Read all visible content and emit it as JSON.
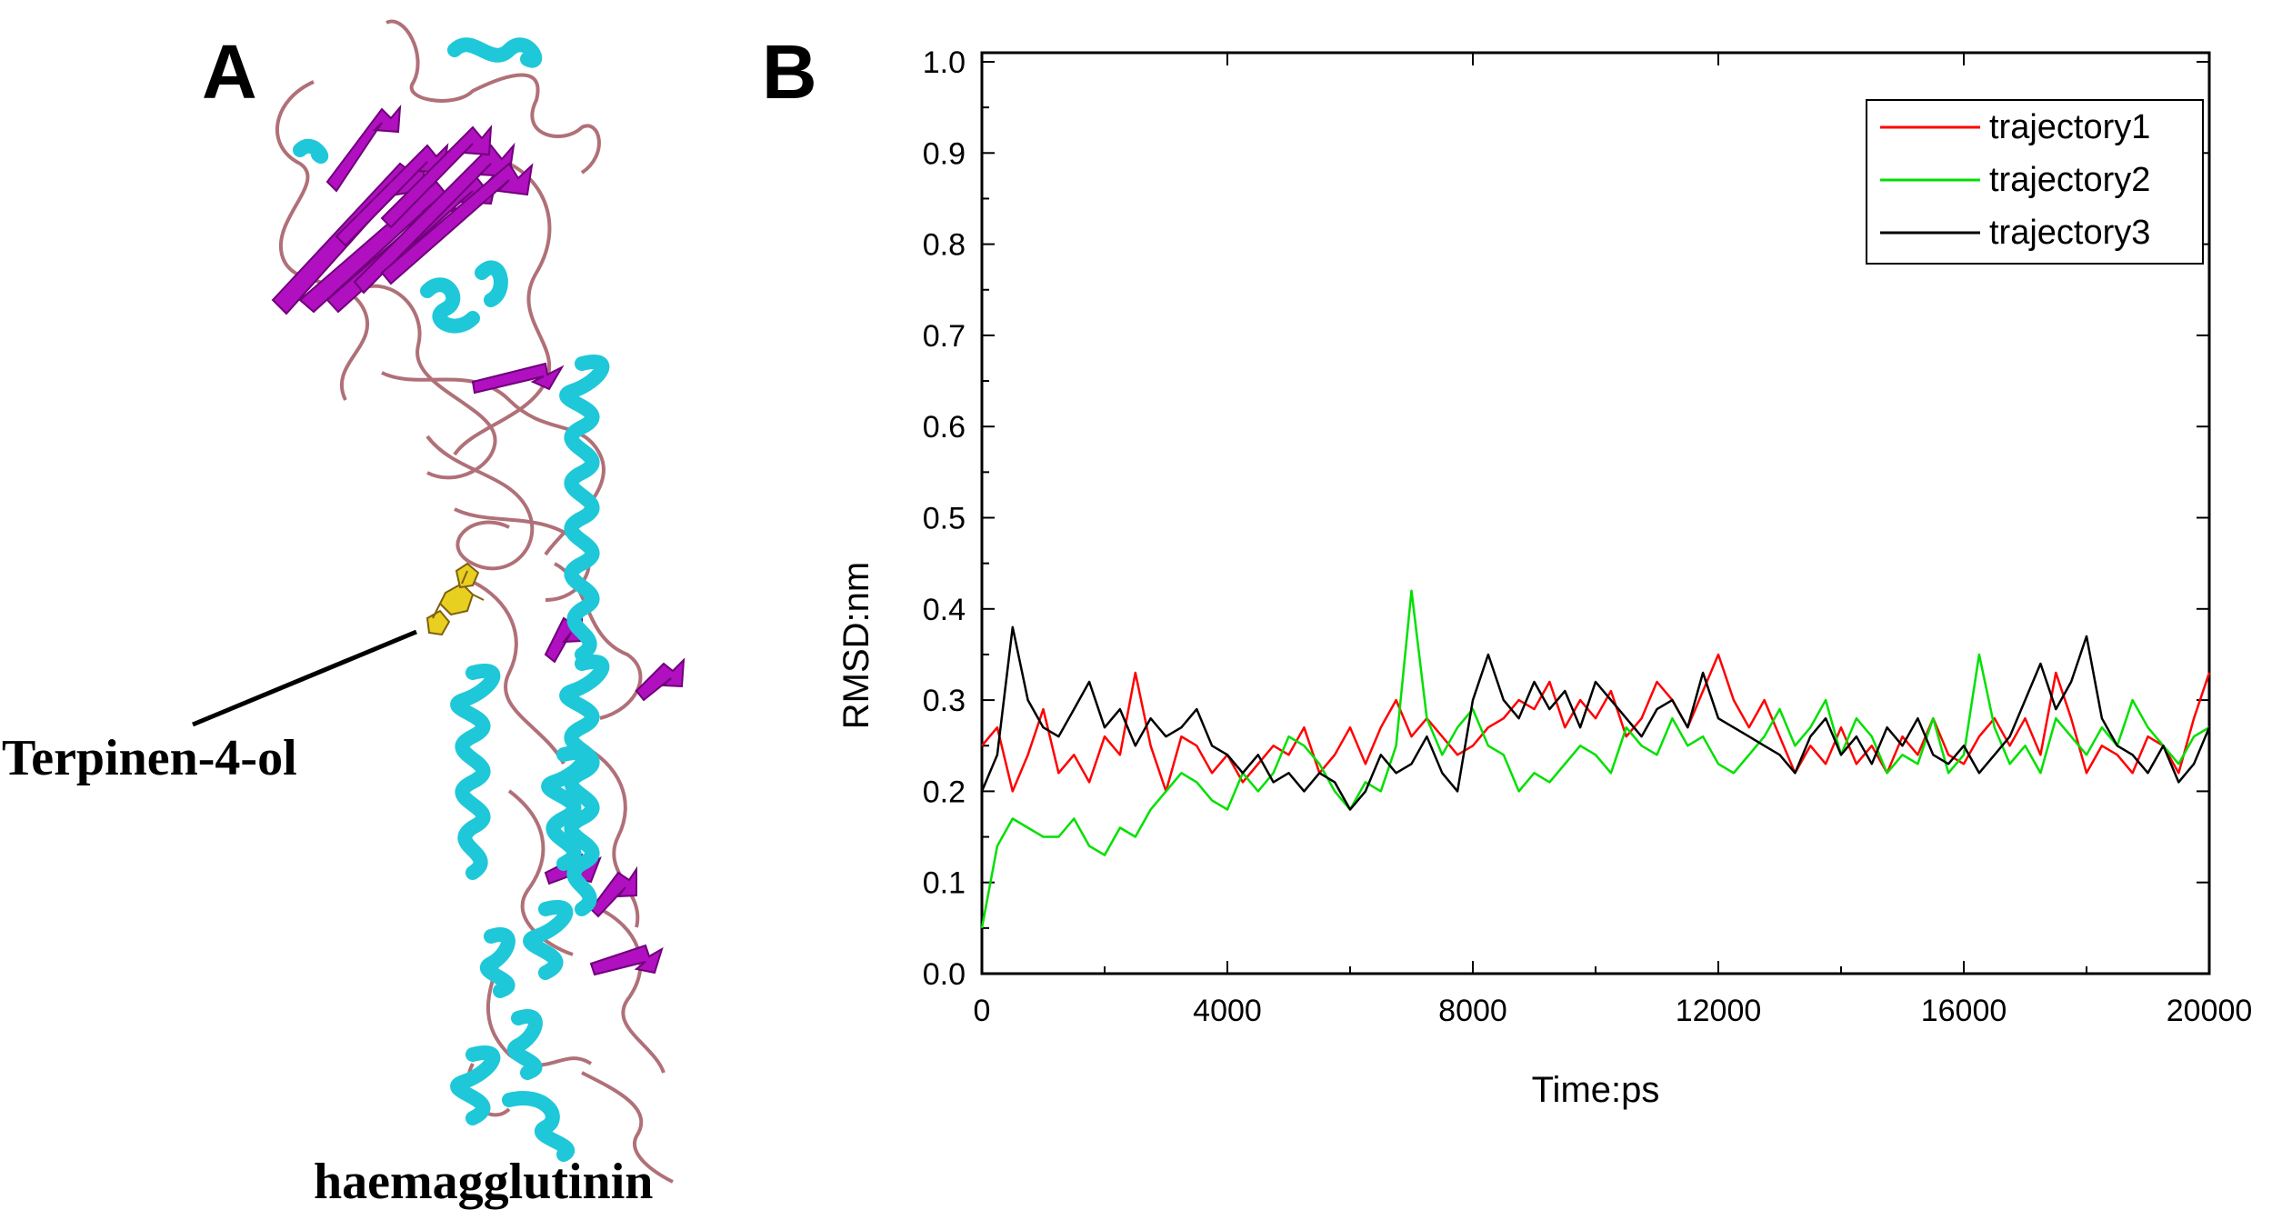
{
  "panels": {
    "a": {
      "letter": "A",
      "ligand_label": "Terpinen-4-ol",
      "protein_label": "haemagglutinin",
      "colors": {
        "helix": "#1ec8d8",
        "sheet": "#b010c0",
        "loop": "#b07078",
        "ligand": "#e8d020"
      }
    },
    "b": {
      "letter": "B"
    }
  },
  "chart_data": {
    "type": "line",
    "title": "",
    "xlabel": "Time:ps",
    "ylabel": "RMSD:nm",
    "xlim": [
      0,
      20000
    ],
    "ylim": [
      0.0,
      1.0
    ],
    "xticks": [
      0,
      4000,
      8000,
      12000,
      16000,
      20000
    ],
    "xtick_labels": [
      "0",
      "4000",
      "8000",
      "12000",
      "16000",
      "20000"
    ],
    "yticks": [
      0.0,
      0.1,
      0.2,
      0.3,
      0.4,
      0.5,
      0.6,
      0.7,
      0.8,
      0.9,
      1.0
    ],
    "ytick_labels": [
      "0.0",
      "0.1",
      "0.2",
      "0.3",
      "0.4",
      "0.5",
      "0.6",
      "0.7",
      "0.8",
      "0.9",
      "1.0"
    ],
    "legend": "top-right",
    "grid": false,
    "series": [
      {
        "name": "trajectory1",
        "color": "#ff0000",
        "x": [
          0,
          250,
          500,
          750,
          1000,
          1250,
          1500,
          1750,
          2000,
          2250,
          2500,
          2750,
          3000,
          3250,
          3500,
          3750,
          4000,
          4250,
          4500,
          4750,
          5000,
          5250,
          5500,
          5750,
          6000,
          6250,
          6500,
          6750,
          7000,
          7250,
          7500,
          7750,
          8000,
          8250,
          8500,
          8750,
          9000,
          9250,
          9500,
          9750,
          10000,
          10250,
          10500,
          10750,
          11000,
          11250,
          11500,
          11750,
          12000,
          12250,
          12500,
          12750,
          13000,
          13250,
          13500,
          13750,
          14000,
          14250,
          14500,
          14750,
          15000,
          15250,
          15500,
          15750,
          16000,
          16250,
          16500,
          16750,
          17000,
          17250,
          17500,
          17750,
          18000,
          18250,
          18500,
          18750,
          19000,
          19250,
          19500,
          19750,
          20000
        ],
        "y": [
          0.25,
          0.27,
          0.2,
          0.24,
          0.29,
          0.22,
          0.24,
          0.21,
          0.26,
          0.24,
          0.33,
          0.25,
          0.2,
          0.26,
          0.25,
          0.22,
          0.24,
          0.21,
          0.23,
          0.25,
          0.24,
          0.27,
          0.22,
          0.24,
          0.27,
          0.23,
          0.27,
          0.3,
          0.26,
          0.28,
          0.26,
          0.24,
          0.25,
          0.27,
          0.28,
          0.3,
          0.29,
          0.32,
          0.27,
          0.3,
          0.28,
          0.31,
          0.26,
          0.28,
          0.32,
          0.3,
          0.27,
          0.31,
          0.35,
          0.3,
          0.27,
          0.3,
          0.26,
          0.22,
          0.25,
          0.23,
          0.27,
          0.23,
          0.25,
          0.22,
          0.26,
          0.24,
          0.28,
          0.24,
          0.23,
          0.26,
          0.28,
          0.25,
          0.28,
          0.24,
          0.33,
          0.28,
          0.22,
          0.25,
          0.24,
          0.22,
          0.26,
          0.25,
          0.22,
          0.28,
          0.33
        ]
      },
      {
        "name": "trajectory2",
        "color": "#00e000",
        "x": [
          0,
          250,
          500,
          750,
          1000,
          1250,
          1500,
          1750,
          2000,
          2250,
          2500,
          2750,
          3000,
          3250,
          3500,
          3750,
          4000,
          4250,
          4500,
          4750,
          5000,
          5250,
          5500,
          5750,
          6000,
          6250,
          6500,
          6750,
          7000,
          7250,
          7500,
          7750,
          8000,
          8250,
          8500,
          8750,
          9000,
          9250,
          9500,
          9750,
          10000,
          10250,
          10500,
          10750,
          11000,
          11250,
          11500,
          11750,
          12000,
          12250,
          12500,
          12750,
          13000,
          13250,
          13500,
          13750,
          14000,
          14250,
          14500,
          14750,
          15000,
          15250,
          15500,
          15750,
          16000,
          16250,
          16500,
          16750,
          17000,
          17250,
          17500,
          17750,
          18000,
          18250,
          18500,
          18750,
          19000,
          19250,
          19500,
          19750,
          20000
        ],
        "y": [
          0.05,
          0.14,
          0.17,
          0.16,
          0.15,
          0.15,
          0.17,
          0.14,
          0.13,
          0.16,
          0.15,
          0.18,
          0.2,
          0.22,
          0.21,
          0.19,
          0.18,
          0.22,
          0.2,
          0.22,
          0.26,
          0.25,
          0.23,
          0.2,
          0.18,
          0.21,
          0.2,
          0.25,
          0.42,
          0.28,
          0.24,
          0.27,
          0.29,
          0.25,
          0.24,
          0.2,
          0.22,
          0.21,
          0.23,
          0.25,
          0.24,
          0.22,
          0.27,
          0.25,
          0.24,
          0.28,
          0.25,
          0.26,
          0.23,
          0.22,
          0.24,
          0.26,
          0.29,
          0.25,
          0.27,
          0.3,
          0.24,
          0.28,
          0.26,
          0.22,
          0.24,
          0.23,
          0.28,
          0.22,
          0.24,
          0.35,
          0.27,
          0.23,
          0.25,
          0.22,
          0.28,
          0.26,
          0.24,
          0.27,
          0.25,
          0.3,
          0.27,
          0.25,
          0.23,
          0.26,
          0.27
        ]
      },
      {
        "name": "trajectory3",
        "color": "#000000",
        "x": [
          0,
          250,
          500,
          750,
          1000,
          1250,
          1500,
          1750,
          2000,
          2250,
          2500,
          2750,
          3000,
          3250,
          3500,
          3750,
          4000,
          4250,
          4500,
          4750,
          5000,
          5250,
          5500,
          5750,
          6000,
          6250,
          6500,
          6750,
          7000,
          7250,
          7500,
          7750,
          8000,
          8250,
          8500,
          8750,
          9000,
          9250,
          9500,
          9750,
          10000,
          10250,
          10500,
          10750,
          11000,
          11250,
          11500,
          11750,
          12000,
          12250,
          12500,
          12750,
          13000,
          13250,
          13500,
          13750,
          14000,
          14250,
          14500,
          14750,
          15000,
          15250,
          15500,
          15750,
          16000,
          16250,
          16500,
          16750,
          17000,
          17250,
          17500,
          17750,
          18000,
          18250,
          18500,
          18750,
          19000,
          19250,
          19500,
          19750,
          20000
        ],
        "y": [
          0.2,
          0.24,
          0.38,
          0.3,
          0.27,
          0.26,
          0.29,
          0.32,
          0.27,
          0.29,
          0.25,
          0.28,
          0.26,
          0.27,
          0.29,
          0.25,
          0.24,
          0.22,
          0.24,
          0.21,
          0.22,
          0.2,
          0.22,
          0.21,
          0.18,
          0.2,
          0.24,
          0.22,
          0.23,
          0.26,
          0.22,
          0.2,
          0.3,
          0.35,
          0.3,
          0.28,
          0.32,
          0.29,
          0.31,
          0.27,
          0.32,
          0.3,
          0.28,
          0.26,
          0.29,
          0.3,
          0.27,
          0.33,
          0.28,
          0.27,
          0.26,
          0.25,
          0.24,
          0.22,
          0.26,
          0.28,
          0.24,
          0.26,
          0.23,
          0.27,
          0.25,
          0.28,
          0.24,
          0.23,
          0.25,
          0.22,
          0.24,
          0.26,
          0.3,
          0.34,
          0.29,
          0.32,
          0.37,
          0.28,
          0.25,
          0.24,
          0.22,
          0.25,
          0.21,
          0.23,
          0.27
        ]
      }
    ]
  }
}
